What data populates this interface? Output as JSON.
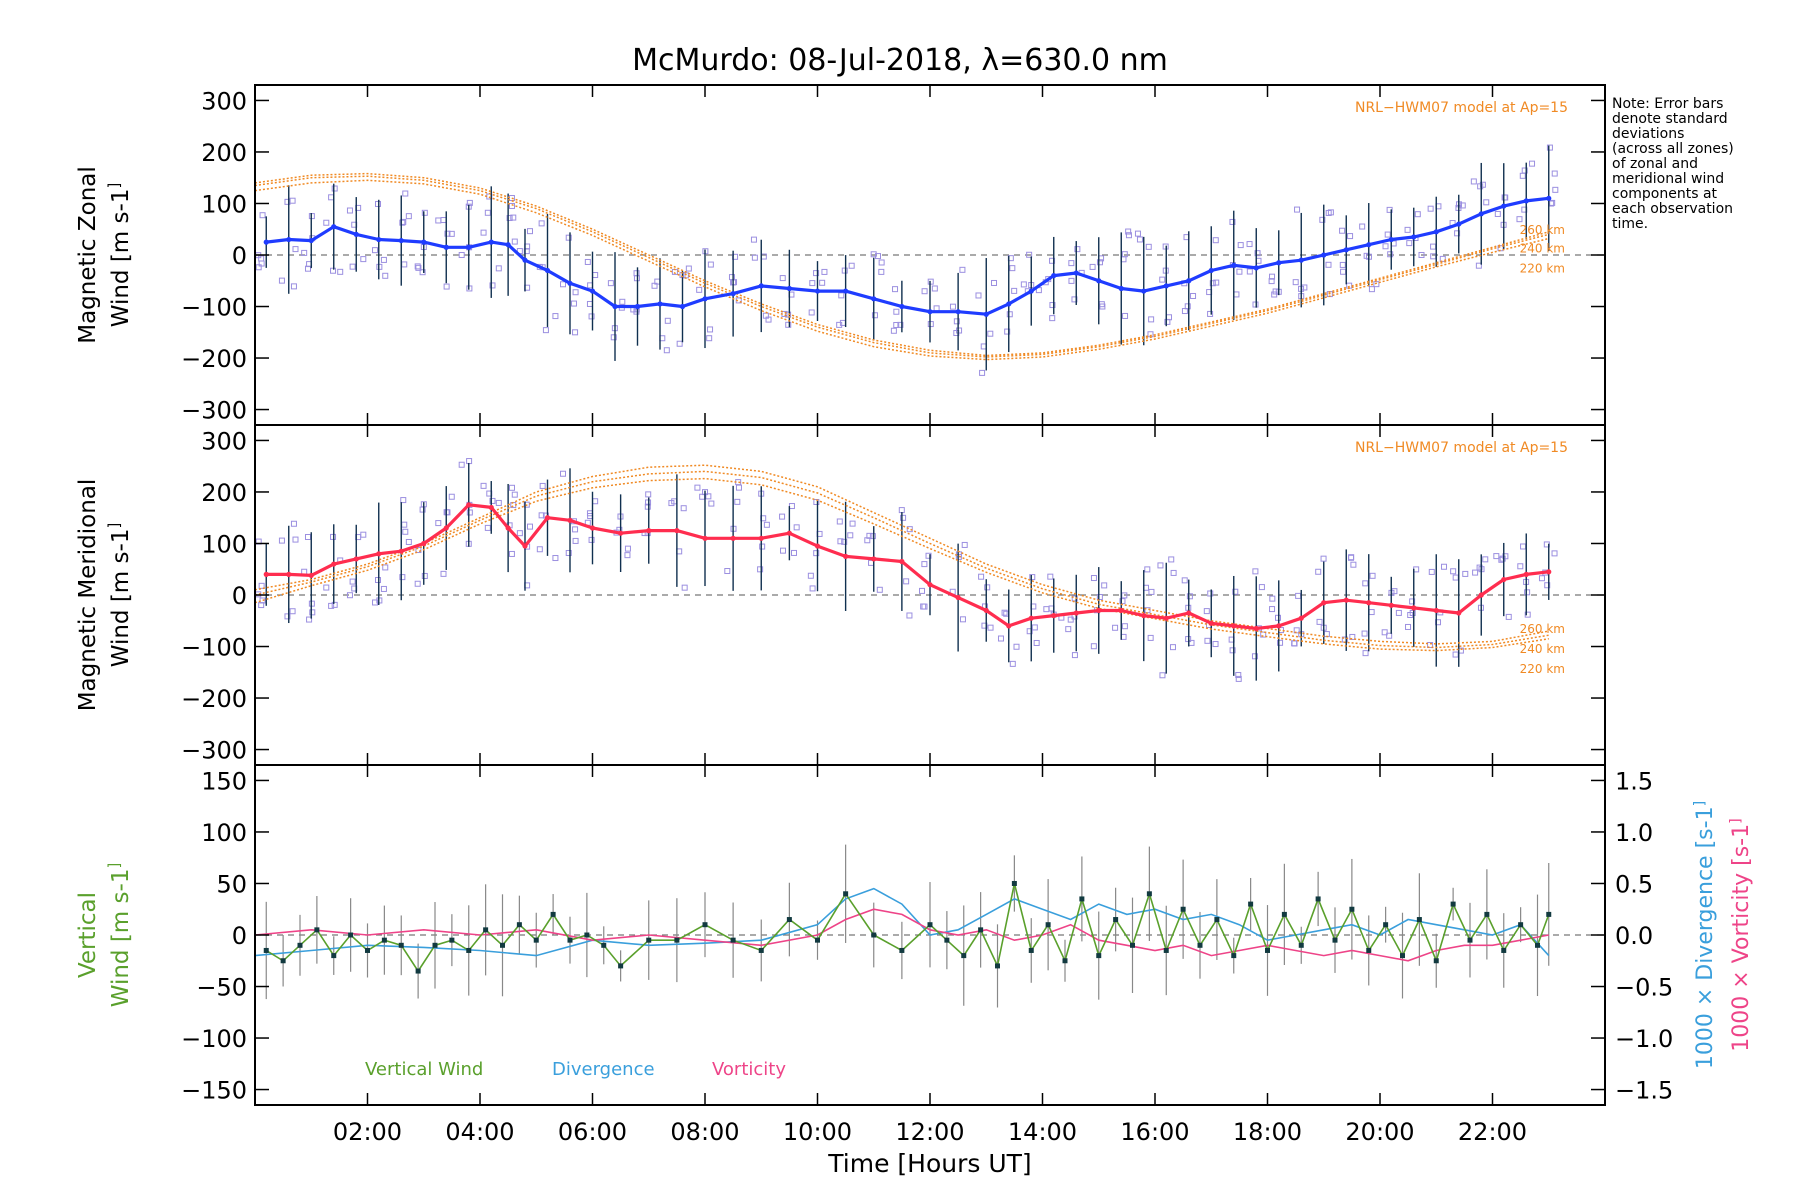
{
  "title": "McMurdo: 08-Jul-2018, λ=630.0 nm",
  "note": {
    "lines": [
      "Note: Error bars",
      "denote standard",
      "deviations",
      "(across all zones)",
      "of zonal and",
      "meridional wind",
      "components at",
      "each observation",
      "time."
    ]
  },
  "colors": {
    "zonal": "#1f3cff",
    "zonal_light": "#4aa8e8",
    "meridional": "#ff2d4f",
    "model": "#f08a24",
    "vertical": "#5aa02c",
    "divergence": "#3a9fdc",
    "vorticity": "#ee4488",
    "scatter": "#9b8fe0",
    "errorbar": "#103050"
  },
  "chart_data": [
    {
      "type": "line",
      "panel": "zonal",
      "ylabel": [
        "Magnetic Zonal",
        "Wind [m s",
        "-1",
        "]"
      ],
      "ylim": [
        -330,
        330
      ],
      "yticks": [
        300,
        200,
        100,
        0,
        -100,
        -200,
        -300
      ],
      "yticklabels": [
        "300",
        "200",
        "100",
        "0",
        "−100",
        "−200",
        "−300"
      ],
      "model_label": "NRL−HWM07 model at Ap=15",
      "altitude_labels": [
        "260 km",
        "240 km",
        "220 km"
      ],
      "series": [
        {
          "name": "Zonal wind",
          "x": [
            0.2,
            0.6,
            1.0,
            1.4,
            1.8,
            2.2,
            2.6,
            3.0,
            3.4,
            3.8,
            4.2,
            4.5,
            4.8,
            5.2,
            5.6,
            6.0,
            6.4,
            6.8,
            7.2,
            7.6,
            8.0,
            8.5,
            9.0,
            9.5,
            10.0,
            10.5,
            11.0,
            11.5,
            12.0,
            12.5,
            13.0,
            13.4,
            13.8,
            14.2,
            14.6,
            15.0,
            15.4,
            15.8,
            16.2,
            16.6,
            17.0,
            17.4,
            17.8,
            18.2,
            18.6,
            19.0,
            19.4,
            19.8,
            20.2,
            20.6,
            21.0,
            21.4,
            21.8,
            22.2,
            22.6,
            23.0
          ],
          "values": [
            25,
            30,
            28,
            55,
            40,
            30,
            28,
            25,
            15,
            15,
            25,
            20,
            -10,
            -30,
            -55,
            -70,
            -100,
            -100,
            -95,
            -100,
            -85,
            -75,
            -60,
            -65,
            -70,
            -70,
            -85,
            -100,
            -110,
            -110,
            -115,
            -95,
            -70,
            -40,
            -35,
            -50,
            -65,
            -70,
            -60,
            -50,
            -30,
            -20,
            -25,
            -15,
            -10,
            0,
            10,
            20,
            30,
            35,
            45,
            60,
            80,
            95,
            105,
            110
          ]
        },
        {
          "name": "HWM07 260 km",
          "x": [
            0.0,
            1.0,
            2.0,
            3.0,
            4.0,
            5.0,
            6.0,
            7.0,
            8.0,
            9.0,
            10.0,
            11.0,
            12.0,
            13.0,
            14.0,
            15.0,
            16.0,
            17.0,
            18.0,
            19.0,
            20.0,
            21.0,
            22.0,
            23.0
          ],
          "values": [
            140,
            155,
            158,
            150,
            130,
            95,
            50,
            0,
            -50,
            -95,
            -135,
            -165,
            -185,
            -195,
            -190,
            -175,
            -155,
            -130,
            -105,
            -75,
            -45,
            -15,
            15,
            45
          ]
        },
        {
          "name": "HWM07 240 km",
          "x": [
            0.0,
            1.0,
            2.0,
            3.0,
            4.0,
            5.0,
            6.0,
            7.0,
            8.0,
            9.0,
            10.0,
            11.0,
            12.0,
            13.0,
            14.0,
            15.0,
            16.0,
            17.0,
            18.0,
            19.0,
            20.0,
            21.0,
            22.0,
            23.0
          ],
          "values": [
            135,
            150,
            153,
            145,
            125,
            90,
            45,
            -5,
            -55,
            -100,
            -140,
            -170,
            -190,
            -198,
            -193,
            -178,
            -158,
            -133,
            -108,
            -78,
            -48,
            -18,
            12,
            40
          ]
        },
        {
          "name": "HWM07 220 km",
          "x": [
            0.0,
            1.0,
            2.0,
            3.0,
            4.0,
            5.0,
            6.0,
            7.0,
            8.0,
            9.0,
            10.0,
            11.0,
            12.0,
            13.0,
            14.0,
            15.0,
            16.0,
            17.0,
            18.0,
            19.0,
            20.0,
            21.0,
            22.0,
            23.0
          ],
          "values": [
            125,
            140,
            145,
            138,
            118,
            82,
            38,
            -12,
            -62,
            -108,
            -148,
            -178,
            -196,
            -203,
            -198,
            -183,
            -163,
            -138,
            -113,
            -83,
            -53,
            -23,
            5,
            32
          ]
        }
      ]
    },
    {
      "type": "line",
      "panel": "meridional",
      "ylabel": [
        "Magnetic Meridional",
        "Wind [m s",
        "-1",
        "]"
      ],
      "ylim": [
        -330,
        330
      ],
      "yticks": [
        300,
        200,
        100,
        0,
        -100,
        -200,
        -300
      ],
      "yticklabels": [
        "300",
        "200",
        "100",
        "0",
        "−100",
        "−200",
        "−300"
      ],
      "model_label": "NRL−HWM07 model at Ap=15",
      "altitude_labels": [
        "260 km",
        "240 km",
        "220 km"
      ],
      "series": [
        {
          "name": "Meridional wind",
          "x": [
            0.2,
            0.6,
            1.0,
            1.4,
            1.8,
            2.2,
            2.6,
            3.0,
            3.4,
            3.8,
            4.2,
            4.5,
            4.8,
            5.2,
            5.6,
            6.0,
            6.5,
            7.0,
            7.5,
            8.0,
            8.5,
            9.0,
            9.5,
            10.0,
            10.5,
            11.0,
            11.5,
            12.0,
            12.5,
            13.0,
            13.4,
            13.8,
            14.2,
            14.6,
            15.0,
            15.4,
            15.8,
            16.2,
            16.6,
            17.0,
            17.4,
            17.8,
            18.2,
            18.6,
            19.0,
            19.4,
            19.8,
            20.2,
            20.6,
            21.0,
            21.4,
            21.8,
            22.2,
            22.6,
            23.0
          ],
          "values": [
            40,
            40,
            38,
            60,
            70,
            80,
            85,
            100,
            130,
            175,
            170,
            130,
            95,
            150,
            145,
            130,
            120,
            125,
            125,
            110,
            110,
            110,
            120,
            95,
            75,
            70,
            65,
            20,
            -5,
            -30,
            -60,
            -45,
            -40,
            -35,
            -30,
            -30,
            -40,
            -45,
            -35,
            -55,
            -60,
            -65,
            -60,
            -45,
            -15,
            -10,
            -15,
            -20,
            -25,
            -30,
            -35,
            0,
            30,
            40,
            45
          ]
        },
        {
          "name": "HWM07 260 km",
          "x": [
            0.0,
            1.0,
            2.0,
            3.0,
            4.0,
            5.0,
            6.0,
            7.0,
            8.0,
            9.0,
            10.0,
            11.0,
            12.0,
            13.0,
            14.0,
            15.0,
            16.0,
            17.0,
            18.0,
            19.0,
            20.0,
            21.0,
            22.0,
            23.0
          ],
          "values": [
            10,
            30,
            60,
            100,
            150,
            200,
            230,
            248,
            252,
            240,
            210,
            160,
            110,
            60,
            20,
            -10,
            -30,
            -50,
            -65,
            -80,
            -90,
            -95,
            -90,
            -70
          ]
        },
        {
          "name": "HWM07 240 km",
          "x": [
            0.0,
            1.0,
            2.0,
            3.0,
            4.0,
            5.0,
            6.0,
            7.0,
            8.0,
            9.0,
            10.0,
            11.0,
            12.0,
            13.0,
            14.0,
            15.0,
            16.0,
            17.0,
            18.0,
            19.0,
            20.0,
            21.0,
            22.0,
            23.0
          ],
          "values": [
            0,
            25,
            55,
            95,
            145,
            192,
            220,
            235,
            240,
            228,
            198,
            150,
            100,
            52,
            12,
            -18,
            -38,
            -58,
            -73,
            -88,
            -98,
            -102,
            -96,
            -78
          ]
        },
        {
          "name": "HWM07 220 km",
          "x": [
            0.0,
            1.0,
            2.0,
            3.0,
            4.0,
            5.0,
            6.0,
            7.0,
            8.0,
            9.0,
            10.0,
            11.0,
            12.0,
            13.0,
            14.0,
            15.0,
            16.0,
            17.0,
            18.0,
            19.0,
            20.0,
            21.0,
            22.0,
            23.0
          ],
          "values": [
            -15,
            18,
            48,
            88,
            138,
            182,
            208,
            222,
            226,
            214,
            184,
            138,
            90,
            44,
            4,
            -26,
            -46,
            -66,
            -81,
            -95,
            -105,
            -108,
            -102,
            -85
          ]
        }
      ]
    },
    {
      "type": "line",
      "panel": "vertical",
      "ylabel_left": [
        "Vertical",
        "Wind [m s",
        "-1",
        "]"
      ],
      "ylabel_right_1": [
        "1000 × Divergence [s",
        "-1",
        "]"
      ],
      "ylabel_right_2": [
        "1000 × Vorticity [s",
        "-1",
        "]"
      ],
      "ylim": [
        -165,
        165
      ],
      "yticks": [
        150,
        100,
        50,
        0,
        -50,
        -100,
        -150
      ],
      "yticklabels": [
        "150",
        "100",
        "50",
        "0",
        "−50",
        "−100",
        "−150"
      ],
      "y2lim": [
        -1.65,
        1.65
      ],
      "y2ticks": [
        1.5,
        1.0,
        0.5,
        0.0,
        -0.5,
        -1.0,
        -1.5
      ],
      "y2ticklabels": [
        "1.5",
        "1.0",
        "0.5",
        "0.0",
        "−0.5",
        "−1.0",
        "−1.5"
      ],
      "legend": [
        "Vertical Wind",
        "Divergence",
        "Vorticity"
      ],
      "series": [
        {
          "name": "Vertical Wind",
          "axis": "left",
          "x": [
            0.2,
            0.5,
            0.8,
            1.1,
            1.4,
            1.7,
            2.0,
            2.3,
            2.6,
            2.9,
            3.2,
            3.5,
            3.8,
            4.1,
            4.4,
            4.7,
            5.0,
            5.3,
            5.6,
            5.9,
            6.2,
            6.5,
            7.0,
            7.5,
            8.0,
            8.5,
            9.0,
            9.5,
            10.0,
            10.5,
            11.0,
            11.5,
            12.0,
            12.3,
            12.6,
            12.9,
            13.2,
            13.5,
            13.8,
            14.1,
            14.4,
            14.7,
            15.0,
            15.3,
            15.6,
            15.9,
            16.2,
            16.5,
            16.8,
            17.1,
            17.4,
            17.7,
            18.0,
            18.3,
            18.6,
            18.9,
            19.2,
            19.5,
            19.8,
            20.1,
            20.4,
            20.7,
            21.0,
            21.3,
            21.6,
            21.9,
            22.2,
            22.5,
            22.8,
            23.0
          ],
          "values": [
            -15,
            -25,
            -10,
            5,
            -20,
            0,
            -15,
            -5,
            -10,
            -35,
            -10,
            -5,
            -15,
            5,
            -10,
            10,
            -5,
            20,
            -5,
            0,
            -10,
            -30,
            -5,
            -5,
            10,
            -5,
            -15,
            15,
            -5,
            40,
            0,
            -15,
            10,
            -5,
            -20,
            5,
            -30,
            50,
            -15,
            10,
            -25,
            35,
            -20,
            15,
            -10,
            40,
            -15,
            25,
            -10,
            15,
            -20,
            30,
            -15,
            20,
            -10,
            35,
            -5,
            25,
            -15,
            10,
            -20,
            15,
            -25,
            30,
            -5,
            20,
            -15,
            10,
            -10,
            20
          ]
        },
        {
          "name": "Divergence",
          "axis": "right",
          "x": [
            0.0,
            1.0,
            2.0,
            3.0,
            4.0,
            5.0,
            6.0,
            7.0,
            8.0,
            9.0,
            10.0,
            10.5,
            11.0,
            11.5,
            12.0,
            12.5,
            13.0,
            13.5,
            14.0,
            14.5,
            15.0,
            15.5,
            16.0,
            16.5,
            17.0,
            17.5,
            18.0,
            18.5,
            19.0,
            19.5,
            20.0,
            20.5,
            21.0,
            21.5,
            22.0,
            22.5,
            23.0
          ],
          "values": [
            -0.2,
            -0.15,
            -0.1,
            -0.12,
            -0.15,
            -0.2,
            -0.05,
            -0.1,
            -0.08,
            -0.05,
            0.1,
            0.35,
            0.45,
            0.3,
            0.0,
            0.05,
            0.2,
            0.35,
            0.25,
            0.15,
            0.3,
            0.2,
            0.25,
            0.15,
            0.2,
            0.1,
            -0.05,
            0.0,
            0.05,
            0.1,
            0.0,
            0.15,
            0.1,
            0.05,
            0.0,
            0.1,
            -0.2
          ]
        },
        {
          "name": "Vorticity",
          "axis": "right",
          "x": [
            0.0,
            1.0,
            2.0,
            3.0,
            4.0,
            5.0,
            6.0,
            7.0,
            8.0,
            9.0,
            10.0,
            10.5,
            11.0,
            11.5,
            12.0,
            12.5,
            13.0,
            13.5,
            14.0,
            14.5,
            15.0,
            15.5,
            16.0,
            16.5,
            17.0,
            17.5,
            18.0,
            18.5,
            19.0,
            19.5,
            20.0,
            20.5,
            21.0,
            21.5,
            22.0,
            22.5,
            23.0
          ],
          "values": [
            0.0,
            0.05,
            0.0,
            0.05,
            0.0,
            0.05,
            -0.05,
            0.0,
            -0.05,
            -0.1,
            0.0,
            0.15,
            0.25,
            0.2,
            0.05,
            0.0,
            0.05,
            -0.05,
            0.0,
            0.1,
            -0.05,
            -0.1,
            -0.15,
            -0.1,
            -0.2,
            -0.15,
            -0.1,
            -0.15,
            -0.2,
            -0.15,
            -0.2,
            -0.25,
            -0.15,
            -0.1,
            -0.1,
            -0.05,
            0.0
          ]
        }
      ]
    }
  ],
  "xaxis": {
    "label": "Time [Hours UT]",
    "xlim": [
      0,
      24
    ],
    "ticks": [
      2,
      4,
      6,
      8,
      10,
      12,
      14,
      16,
      18,
      20,
      22
    ],
    "ticklabels": [
      "02:00",
      "04:00",
      "06:00",
      "08:00",
      "10:00",
      "12:00",
      "14:00",
      "16:00",
      "18:00",
      "20:00",
      "22:00"
    ]
  }
}
